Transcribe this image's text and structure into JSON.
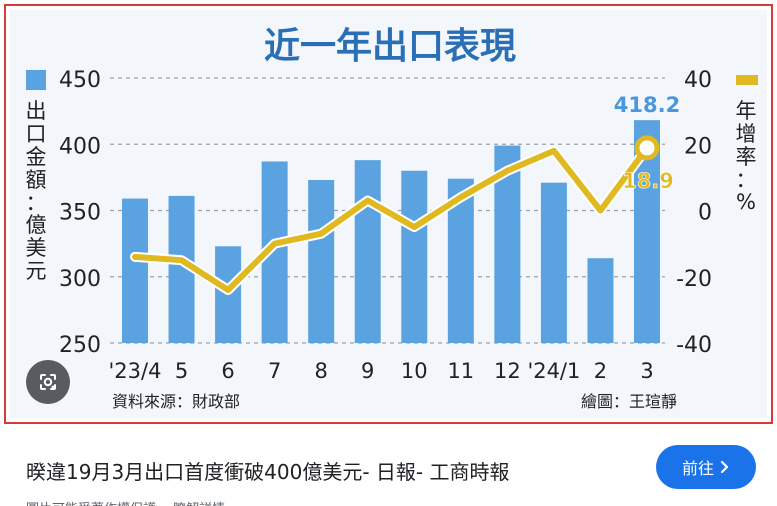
{
  "chart_data": {
    "type": "bar+line",
    "title": "近一年出口表現",
    "categories": [
      "'23/4",
      "5",
      "6",
      "7",
      "8",
      "9",
      "10",
      "11",
      "12",
      "'24/1",
      "2",
      "3"
    ],
    "series": [
      {
        "name": "出口金額：億美元",
        "axis": "left",
        "kind": "bar",
        "color": "#5aa3e0",
        "values": [
          359,
          361,
          323,
          387,
          373,
          388,
          380,
          374,
          399,
          371,
          314,
          418.2
        ]
      },
      {
        "name": "年增率：%",
        "axis": "right",
        "kind": "line",
        "color": "#e0b820",
        "values": [
          -14,
          -15,
          -24,
          -10,
          -7,
          3,
          -5,
          4,
          12,
          18,
          0,
          18.9
        ]
      }
    ],
    "left_axis": {
      "label": "出口金額：億美元",
      "ticks": [
        "450",
        "400",
        "350",
        "300",
        "250"
      ],
      "ylim": [
        250,
        450
      ]
    },
    "right_axis": {
      "label": "年增率：%",
      "ticks": [
        "40",
        "20",
        "0",
        "-20",
        "-40"
      ],
      "ylim": [
        -40,
        40
      ]
    },
    "annotations": {
      "bar_last": "418.2",
      "line_last": "18.9"
    },
    "source": "資料來源：財政部",
    "credit": "繪圖：王瑄靜",
    "grid": "dashed horizontal",
    "legend": "top-left bar, top-right line"
  },
  "caption": {
    "title": "暌違19月3月出口首度衝破400億美元- 日報- 工商時報",
    "visit_label": "前往",
    "subtext": "圖片可能受著作權保護。 瞭解詳情"
  },
  "icons": {
    "lens": "lens-icon",
    "chevron": "chevron-right-icon"
  }
}
